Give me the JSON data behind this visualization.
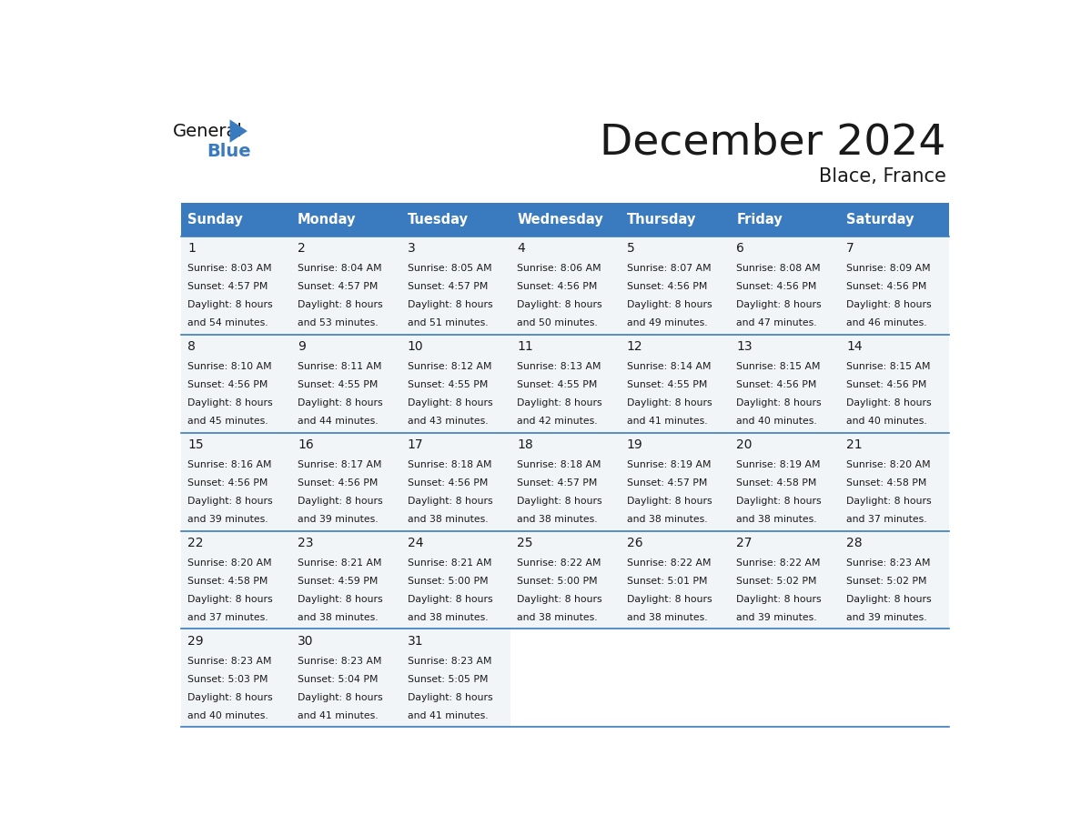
{
  "title": "December 2024",
  "subtitle": "Blace, France",
  "header_bg_color": "#3a7bbf",
  "header_text_color": "#ffffff",
  "cell_bg_color": "#f2f5f8",
  "empty_cell_color": "#ffffff",
  "border_color": "#3a7bbf",
  "text_color": "#1a1a1a",
  "day_names": [
    "Sunday",
    "Monday",
    "Tuesday",
    "Wednesday",
    "Thursday",
    "Friday",
    "Saturday"
  ],
  "calendar": [
    [
      {
        "day": 1,
        "sunrise": "8:03 AM",
        "sunset": "4:57 PM",
        "daylight_h": "8 hours",
        "daylight_m": "54 minutes"
      },
      {
        "day": 2,
        "sunrise": "8:04 AM",
        "sunset": "4:57 PM",
        "daylight_h": "8 hours",
        "daylight_m": "53 minutes"
      },
      {
        "day": 3,
        "sunrise": "8:05 AM",
        "sunset": "4:57 PM",
        "daylight_h": "8 hours",
        "daylight_m": "51 minutes"
      },
      {
        "day": 4,
        "sunrise": "8:06 AM",
        "sunset": "4:56 PM",
        "daylight_h": "8 hours",
        "daylight_m": "50 minutes"
      },
      {
        "day": 5,
        "sunrise": "8:07 AM",
        "sunset": "4:56 PM",
        "daylight_h": "8 hours",
        "daylight_m": "49 minutes"
      },
      {
        "day": 6,
        "sunrise": "8:08 AM",
        "sunset": "4:56 PM",
        "daylight_h": "8 hours",
        "daylight_m": "47 minutes"
      },
      {
        "day": 7,
        "sunrise": "8:09 AM",
        "sunset": "4:56 PM",
        "daylight_h": "8 hours",
        "daylight_m": "46 minutes"
      }
    ],
    [
      {
        "day": 8,
        "sunrise": "8:10 AM",
        "sunset": "4:56 PM",
        "daylight_h": "8 hours",
        "daylight_m": "45 minutes"
      },
      {
        "day": 9,
        "sunrise": "8:11 AM",
        "sunset": "4:55 PM",
        "daylight_h": "8 hours",
        "daylight_m": "44 minutes"
      },
      {
        "day": 10,
        "sunrise": "8:12 AM",
        "sunset": "4:55 PM",
        "daylight_h": "8 hours",
        "daylight_m": "43 minutes"
      },
      {
        "day": 11,
        "sunrise": "8:13 AM",
        "sunset": "4:55 PM",
        "daylight_h": "8 hours",
        "daylight_m": "42 minutes"
      },
      {
        "day": 12,
        "sunrise": "8:14 AM",
        "sunset": "4:55 PM",
        "daylight_h": "8 hours",
        "daylight_m": "41 minutes"
      },
      {
        "day": 13,
        "sunrise": "8:15 AM",
        "sunset": "4:56 PM",
        "daylight_h": "8 hours",
        "daylight_m": "40 minutes"
      },
      {
        "day": 14,
        "sunrise": "8:15 AM",
        "sunset": "4:56 PM",
        "daylight_h": "8 hours",
        "daylight_m": "40 minutes"
      }
    ],
    [
      {
        "day": 15,
        "sunrise": "8:16 AM",
        "sunset": "4:56 PM",
        "daylight_h": "8 hours",
        "daylight_m": "39 minutes"
      },
      {
        "day": 16,
        "sunrise": "8:17 AM",
        "sunset": "4:56 PM",
        "daylight_h": "8 hours",
        "daylight_m": "39 minutes"
      },
      {
        "day": 17,
        "sunrise": "8:18 AM",
        "sunset": "4:56 PM",
        "daylight_h": "8 hours",
        "daylight_m": "38 minutes"
      },
      {
        "day": 18,
        "sunrise": "8:18 AM",
        "sunset": "4:57 PM",
        "daylight_h": "8 hours",
        "daylight_m": "38 minutes"
      },
      {
        "day": 19,
        "sunrise": "8:19 AM",
        "sunset": "4:57 PM",
        "daylight_h": "8 hours",
        "daylight_m": "38 minutes"
      },
      {
        "day": 20,
        "sunrise": "8:19 AM",
        "sunset": "4:58 PM",
        "daylight_h": "8 hours",
        "daylight_m": "38 minutes"
      },
      {
        "day": 21,
        "sunrise": "8:20 AM",
        "sunset": "4:58 PM",
        "daylight_h": "8 hours",
        "daylight_m": "37 minutes"
      }
    ],
    [
      {
        "day": 22,
        "sunrise": "8:20 AM",
        "sunset": "4:58 PM",
        "daylight_h": "8 hours",
        "daylight_m": "37 minutes"
      },
      {
        "day": 23,
        "sunrise": "8:21 AM",
        "sunset": "4:59 PM",
        "daylight_h": "8 hours",
        "daylight_m": "38 minutes"
      },
      {
        "day": 24,
        "sunrise": "8:21 AM",
        "sunset": "5:00 PM",
        "daylight_h": "8 hours",
        "daylight_m": "38 minutes"
      },
      {
        "day": 25,
        "sunrise": "8:22 AM",
        "sunset": "5:00 PM",
        "daylight_h": "8 hours",
        "daylight_m": "38 minutes"
      },
      {
        "day": 26,
        "sunrise": "8:22 AM",
        "sunset": "5:01 PM",
        "daylight_h": "8 hours",
        "daylight_m": "38 minutes"
      },
      {
        "day": 27,
        "sunrise": "8:22 AM",
        "sunset": "5:02 PM",
        "daylight_h": "8 hours",
        "daylight_m": "39 minutes"
      },
      {
        "day": 28,
        "sunrise": "8:23 AM",
        "sunset": "5:02 PM",
        "daylight_h": "8 hours",
        "daylight_m": "39 minutes"
      }
    ],
    [
      {
        "day": 29,
        "sunrise": "8:23 AM",
        "sunset": "5:03 PM",
        "daylight_h": "8 hours",
        "daylight_m": "40 minutes"
      },
      {
        "day": 30,
        "sunrise": "8:23 AM",
        "sunset": "5:04 PM",
        "daylight_h": "8 hours",
        "daylight_m": "41 minutes"
      },
      {
        "day": 31,
        "sunrise": "8:23 AM",
        "sunset": "5:05 PM",
        "daylight_h": "8 hours",
        "daylight_m": "41 minutes"
      },
      null,
      null,
      null,
      null
    ]
  ]
}
